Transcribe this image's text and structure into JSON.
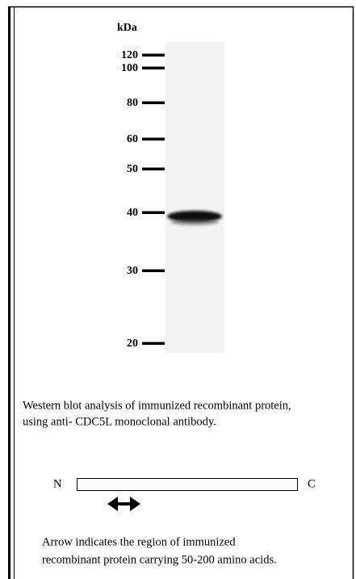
{
  "blot": {
    "unit": "kDa",
    "markers": [
      "120",
      "100",
      "80",
      "60",
      "50",
      "40",
      "30",
      "20"
    ]
  },
  "caption": [
    "Western blot analysis of immunized recombinant protein,",
    "using anti- CDC5L monoclonal antibody."
  ],
  "map": {
    "n_label": "N",
    "c_label": "C"
  },
  "note": [
    "Arrow indicates the region of immunized",
    "recombinant protein carrying 50-200 amino acids."
  ]
}
